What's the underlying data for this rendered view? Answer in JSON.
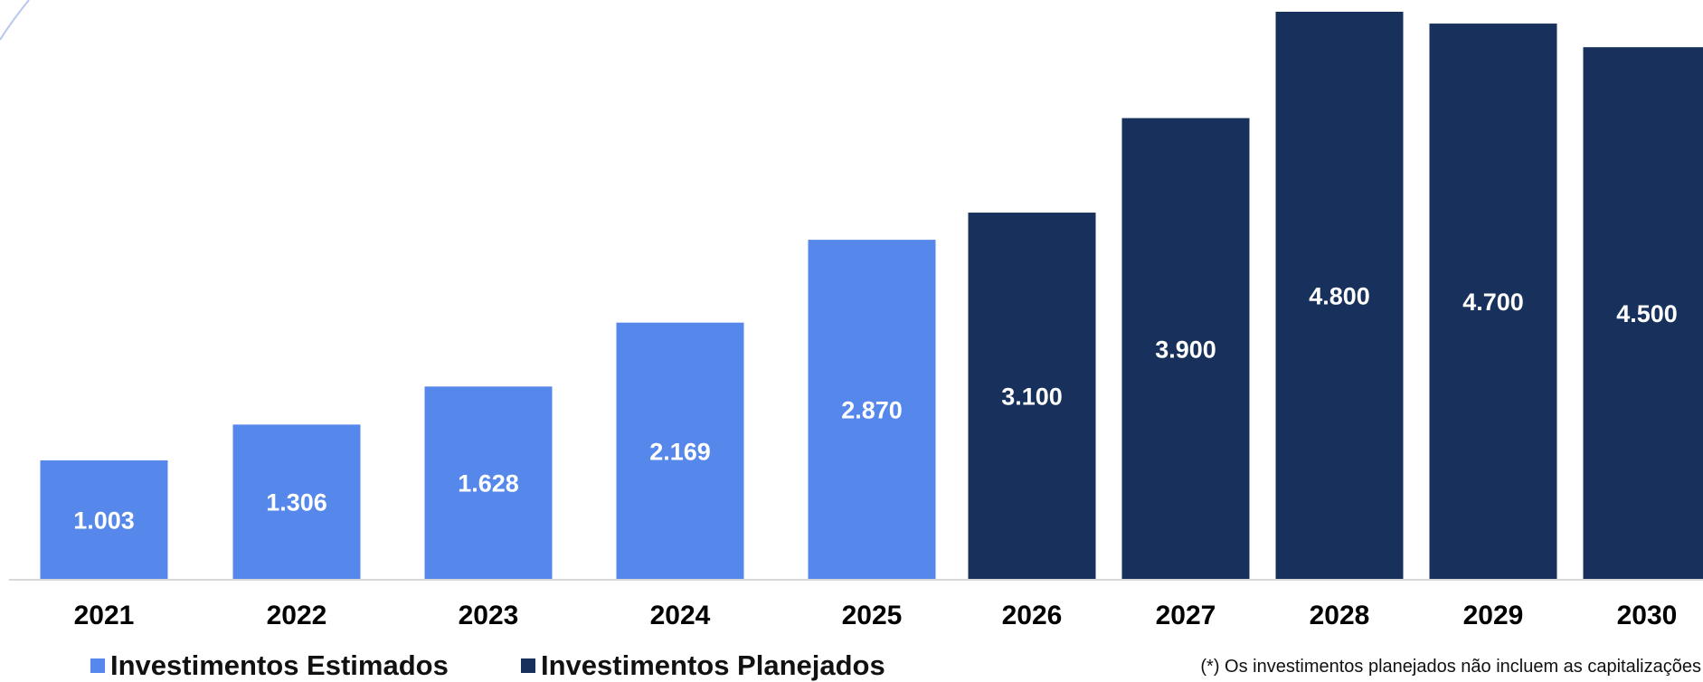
{
  "chart_data": {
    "type": "bar",
    "categories": [
      "2021",
      "2022",
      "2023",
      "2024",
      "2025",
      "2026",
      "2027",
      "2028",
      "2029",
      "2030"
    ],
    "series": [
      {
        "name": "Investimentos Estimados",
        "values": [
          1.003,
          1.306,
          1.628,
          2.169,
          2.87,
          null,
          null,
          null,
          null,
          null
        ],
        "labels": [
          "1.003",
          "1.306",
          "1.628",
          "2.169",
          "2.870",
          "",
          "",
          "",
          "",
          ""
        ],
        "color": "#5588EA"
      },
      {
        "name": "Investimentos Planejados",
        "values": [
          null,
          null,
          null,
          null,
          null,
          3.1,
          3.9,
          4.8,
          4.7,
          4.5
        ],
        "labels": [
          "",
          "",
          "",
          "",
          "",
          "3.100",
          "3.900",
          "4.800",
          "4.700",
          "4.500"
        ],
        "color": "#17315C"
      }
    ],
    "ylim": [
      0,
      4.8
    ],
    "grid": false,
    "legend_position": "bottom-left"
  },
  "legend": {
    "estimados": "Investimentos Estimados",
    "planejados": "Investimentos Planejados"
  },
  "footnote": "(*) Os investimentos planejados não incluem as capitalizações"
}
